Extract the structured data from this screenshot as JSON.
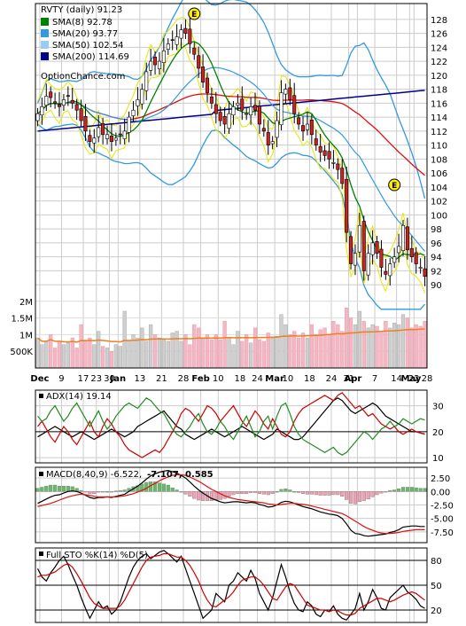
{
  "chart_data": [
    {
      "type": "candlestick",
      "title": "RVTY (daily) 91.23",
      "watermark": "OptionChance.com",
      "y_ticks": [
        90,
        92,
        94,
        96,
        98,
        100,
        102,
        104,
        106,
        108,
        110,
        112,
        114,
        116,
        118,
        120,
        122,
        124,
        126,
        128
      ],
      "ylim": [
        88.5,
        129.5
      ],
      "x_tick_labels": [
        "Dec",
        "9",
        "17",
        "23",
        "30",
        "Jan",
        "13",
        "21",
        "28",
        "Feb",
        "10",
        "18",
        "24",
        "Mar",
        "10",
        "18",
        "24",
        "31",
        "Apr",
        "7",
        "14",
        "22",
        "28",
        "May"
      ],
      "earnings_marker": "E",
      "legend": [
        {
          "label": "SMA(8) 92.78",
          "color": "#008000"
        },
        {
          "label": "SMA(20) 93.77",
          "color": "#3399dd"
        },
        {
          "label": "SMA(50) 102.54",
          "color": "#99ccee"
        },
        {
          "label": "SMA(200) 114.69",
          "color": "#00008b"
        }
      ],
      "closes": [
        114.5,
        115.5,
        117.0,
        116.8,
        116.0,
        115.5,
        116.5,
        117.0,
        116.0,
        115.0,
        113.5,
        112.0,
        110.5,
        111.0,
        112.5,
        111.5,
        111.5,
        110.5,
        111.0,
        111.5,
        112.0,
        114.0,
        115.0,
        116.5,
        118.0,
        120.5,
        122.0,
        121.5,
        122.0,
        123.5,
        124.5,
        125.0,
        125.5,
        126.5,
        126.0,
        124.5,
        123.0,
        121.0,
        119.0,
        117.5,
        116.0,
        114.5,
        113.5,
        113.0,
        114.5,
        115.5,
        116.0,
        115.0,
        114.5,
        115.5,
        115.0,
        113.0,
        112.0,
        110.0,
        110.5,
        113.5,
        117.5,
        118.0,
        116.5,
        114.5,
        113.0,
        112.0,
        113.0,
        111.5,
        110.0,
        109.0,
        108.5,
        108.0,
        107.5,
        106.5,
        104.5,
        97.5,
        93.0,
        94.5,
        98.5,
        92.0,
        94.5,
        96.0,
        94.5,
        92.5,
        91.5,
        93.0,
        94.0,
        95.5,
        98.5,
        95.0,
        94.0,
        93.0,
        92.5,
        91.2
      ],
      "volume_ticks": [
        "2M",
        "1.5M",
        "1M",
        "500K"
      ],
      "volume_ylim": [
        0,
        2100000
      ],
      "volume": [
        900000,
        700000,
        800000,
        1000000,
        600000,
        800000,
        700000,
        750000,
        900000,
        600000,
        1300000,
        800000,
        900000,
        700000,
        1100000,
        650000,
        600000,
        500000,
        700000,
        650000,
        1700000,
        800000,
        1000000,
        900000,
        1200000,
        800000,
        1300000,
        1000000,
        900000,
        850000,
        800000,
        1050000,
        1100000,
        800000,
        1000000,
        700000,
        1300000,
        1200000,
        900000,
        1000000,
        850000,
        1000000,
        850000,
        1400000,
        900000,
        700000,
        1100000,
        800000,
        1000000,
        750000,
        1200000,
        850000,
        800000,
        1050000,
        900000,
        950000,
        1600000,
        1300000,
        1000000,
        1100000,
        900000,
        1050000,
        900000,
        1300000,
        1000000,
        1150000,
        1200000,
        1000000,
        1400000,
        1300000,
        1100000,
        1800000,
        1500000,
        1300000,
        1700000,
        1400000,
        1200000,
        1300000,
        1250000,
        1100000,
        1400000,
        1200000,
        1350000,
        1300000,
        1600000,
        1500000,
        1200000,
        1300000,
        1250000,
        1400000
      ],
      "volume_colors": [
        "gray",
        "pink"
      ]
    },
    {
      "type": "line",
      "title": "ADX(14) 19.14",
      "y_ticks": [
        10,
        20,
        30
      ],
      "ylim": [
        8,
        36
      ],
      "series": [
        {
          "color": "#000000",
          "values": [
            18,
            19,
            20,
            21,
            22,
            21,
            20,
            19,
            18,
            19,
            20,
            19,
            18,
            17,
            18,
            19,
            20,
            21,
            20,
            19,
            18,
            19,
            20,
            22,
            23,
            24,
            25,
            26,
            27,
            28,
            26,
            24,
            22,
            21,
            19,
            18,
            17,
            18,
            19,
            20,
            21,
            20,
            19,
            18,
            19,
            20,
            21,
            22,
            21,
            20,
            19,
            18,
            17,
            18,
            19,
            21,
            20,
            19,
            18,
            17,
            17,
            18,
            20,
            22,
            24,
            26,
            28,
            30,
            32,
            33,
            32,
            30,
            28,
            27,
            28,
            29,
            30,
            31,
            30,
            28,
            26,
            25,
            24,
            23,
            22,
            21,
            20,
            20,
            19.5,
            19.1
          ]
        },
        {
          "color": "#cc0000",
          "values": [
            22,
            24,
            21,
            18,
            16,
            19,
            22,
            20,
            17,
            15,
            18,
            21,
            24,
            20,
            18,
            22,
            25,
            23,
            20,
            18,
            15,
            13,
            12,
            11,
            10,
            11,
            12,
            13,
            12,
            14,
            17,
            20,
            23,
            27,
            29,
            28,
            26,
            24,
            27,
            30,
            29,
            27,
            24,
            26,
            28,
            30,
            27,
            24,
            22,
            25,
            28,
            26,
            23,
            21,
            25,
            22,
            19,
            18,
            20,
            24,
            27,
            29,
            30,
            31,
            32,
            33,
            34,
            33,
            32,
            34,
            35,
            33,
            31,
            29,
            30,
            28,
            26,
            27,
            25,
            23,
            22,
            21,
            22,
            20,
            19,
            20,
            21,
            20,
            19.5,
            19.0
          ]
        },
        {
          "color": "#228b22",
          "values": [
            26,
            24,
            25,
            28,
            30,
            27,
            24,
            26,
            29,
            31,
            28,
            25,
            22,
            25,
            28,
            24,
            21,
            23,
            26,
            28,
            30,
            31,
            30,
            29,
            31,
            33,
            32,
            30,
            28,
            27,
            24,
            21,
            19,
            18,
            20,
            22,
            25,
            27,
            23,
            20,
            19,
            21,
            24,
            22,
            19,
            17,
            20,
            23,
            26,
            22,
            18,
            20,
            24,
            26,
            21,
            26,
            30,
            31,
            27,
            22,
            19,
            17,
            16,
            15,
            14,
            13,
            12,
            13,
            14,
            12,
            11,
            12,
            14,
            16,
            18,
            20,
            19,
            17,
            19,
            21,
            22,
            24,
            22,
            23,
            25,
            24,
            23,
            24,
            25,
            24.5
          ]
        }
      ]
    },
    {
      "type": "bar+line",
      "title": "MACD(8,40,9) -6.522,",
      "signal_label": "-7.107,",
      "hist_label": "0.585",
      "y_ticks": [
        2.5,
        0.0,
        -2.5,
        -5.0,
        -7.5
      ],
      "y_tick_labels": [
        "2.50",
        "0.00",
        "-2.50",
        "-5.00",
        "-7.50"
      ],
      "ylim": [
        -9.5,
        4.5
      ],
      "macd": [
        -2.2,
        -1.8,
        -1.4,
        -1.0,
        -0.7,
        -0.6,
        -0.3,
        0.0,
        0.1,
        0.0,
        -0.3,
        -0.7,
        -1.1,
        -1.3,
        -1.1,
        -1.1,
        -1.0,
        -1.1,
        -0.9,
        -0.7,
        -0.5,
        0.0,
        0.5,
        1.0,
        1.6,
        2.3,
        2.9,
        3.3,
        3.6,
        3.8,
        3.9,
        3.7,
        3.4,
        3.0,
        2.5,
        1.8,
        1.0,
        0.3,
        -0.3,
        -0.8,
        -1.3,
        -1.6,
        -1.9,
        -2.1,
        -2.0,
        -1.9,
        -1.9,
        -2.0,
        -2.1,
        -2.0,
        -2.1,
        -2.4,
        -2.6,
        -2.9,
        -2.8,
        -2.5,
        -2.0,
        -1.8,
        -1.9,
        -2.2,
        -2.5,
        -2.8,
        -3.0,
        -3.2,
        -3.5,
        -3.8,
        -4.0,
        -4.2,
        -4.3,
        -4.5,
        -5.0,
        -6.0,
        -7.2,
        -7.8,
        -7.9,
        -8.2,
        -8.3,
        -8.2,
        -8.1,
        -8.0,
        -7.9,
        -7.6,
        -7.4,
        -7.1,
        -6.6,
        -6.5,
        -6.4,
        -6.4,
        -6.5,
        -6.5
      ],
      "signal": [
        -2.8,
        -2.6,
        -2.4,
        -2.2,
        -1.9,
        -1.6,
        -1.3,
        -1.0,
        -0.8,
        -0.6,
        -0.5,
        -0.6,
        -0.7,
        -0.9,
        -1.0,
        -1.0,
        -1.0,
        -1.0,
        -1.0,
        -0.9,
        -0.8,
        -0.6,
        -0.4,
        -0.1,
        0.2,
        0.6,
        1.1,
        1.5,
        2.0,
        2.4,
        2.7,
        3.0,
        3.1,
        3.1,
        3.0,
        2.7,
        2.3,
        1.9,
        1.4,
        0.9,
        0.4,
        0.0,
        -0.4,
        -0.8,
        -1.1,
        -1.3,
        -1.5,
        -1.6,
        -1.7,
        -1.8,
        -1.9,
        -2.0,
        -2.1,
        -2.3,
        -2.4,
        -2.5,
        -2.4,
        -2.3,
        -2.2,
        -2.2,
        -2.3,
        -2.4,
        -2.5,
        -2.7,
        -2.9,
        -3.1,
        -3.3,
        -3.5,
        -3.7,
        -3.9,
        -4.1,
        -4.5,
        -5.0,
        -5.5,
        -6.0,
        -6.5,
        -6.9,
        -7.2,
        -7.5,
        -7.7,
        -7.8,
        -7.8,
        -7.7,
        -7.6,
        -7.4,
        -7.3,
        -7.2,
        -7.1,
        -7.1,
        -7.1
      ]
    },
    {
      "type": "line",
      "title": "Full STO %K(14) %D(5)",
      "y_ticks": [
        20,
        50,
        80
      ],
      "ylim": [
        5,
        95
      ],
      "series": [
        {
          "color": "#000000",
          "values": [
            70,
            60,
            55,
            65,
            72,
            80,
            85,
            75,
            62,
            50,
            35,
            22,
            10,
            20,
            30,
            22,
            25,
            15,
            20,
            30,
            45,
            60,
            72,
            80,
            85,
            88,
            82,
            86,
            90,
            92,
            88,
            83,
            78,
            85,
            70,
            55,
            40,
            25,
            10,
            15,
            20,
            40,
            35,
            30,
            50,
            55,
            65,
            60,
            55,
            68,
            58,
            40,
            30,
            20,
            35,
            55,
            75,
            60,
            42,
            28,
            20,
            18,
            30,
            25,
            15,
            12,
            20,
            18,
            25,
            15,
            10,
            8,
            15,
            22,
            40,
            20,
            30,
            45,
            35,
            22,
            20,
            35,
            40,
            45,
            50,
            42,
            38,
            33,
            25,
            22
          ]
        },
        {
          "color": "#cc0000",
          "values": [
            60,
            62,
            62,
            64,
            66,
            70,
            74,
            76,
            72,
            64,
            55,
            45,
            35,
            28,
            25,
            22,
            22,
            22,
            22,
            25,
            32,
            42,
            52,
            62,
            72,
            80,
            84,
            85,
            86,
            88,
            88,
            86,
            84,
            84,
            80,
            74,
            65,
            55,
            42,
            32,
            25,
            24,
            28,
            32,
            36,
            42,
            50,
            56,
            58,
            60,
            60,
            56,
            50,
            42,
            34,
            32,
            40,
            48,
            52,
            50,
            42,
            34,
            26,
            24,
            22,
            20,
            20,
            18,
            20,
            19,
            16,
            14,
            14,
            16,
            22,
            25,
            28,
            31,
            34,
            34,
            32,
            30,
            32,
            35,
            38,
            40,
            42,
            40,
            36,
            32
          ]
        }
      ]
    }
  ]
}
